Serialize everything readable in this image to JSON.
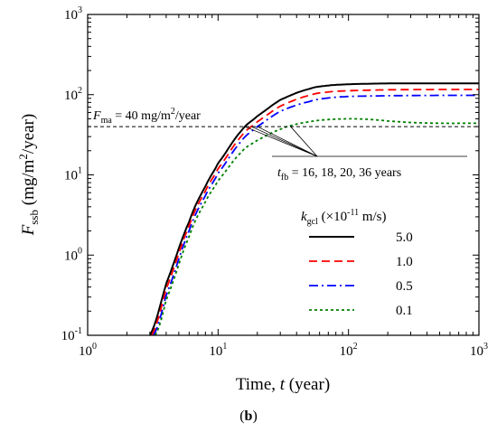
{
  "chart_data": {
    "type": "line",
    "xscale": "log",
    "yscale": "log",
    "xlim": [
      1,
      1000
    ],
    "ylim": [
      0.1,
      1000
    ],
    "xlabel": {
      "prefix": "Time, ",
      "var": "t",
      "suffix": " (year)"
    },
    "ylabel": {
      "var": "F",
      "sub": "ssb",
      "unit_pre": " (mg/m",
      "unit_sup": "2",
      "unit_post": "/year)"
    },
    "x_ticks": [
      {
        "value": 1,
        "base": "10",
        "exp": "0"
      },
      {
        "value": 10,
        "base": "10",
        "exp": "1"
      },
      {
        "value": 100,
        "base": "10",
        "exp": "2"
      },
      {
        "value": 1000,
        "base": "10",
        "exp": "3"
      }
    ],
    "y_ticks": [
      {
        "value": 0.1,
        "base": "10",
        "exp": "-1"
      },
      {
        "value": 1,
        "base": "10",
        "exp": "0"
      },
      {
        "value": 10,
        "base": "10",
        "exp": "1"
      },
      {
        "value": 100,
        "base": "10",
        "exp": "2"
      },
      {
        "value": 1000,
        "base": "10",
        "exp": "3"
      }
    ],
    "reference_line": {
      "y": 40,
      "label_var": "F",
      "label_sub": "ma",
      "label_text": " = 40 mg/m",
      "label_sup": "2",
      "label_post": "/year"
    },
    "annotation": {
      "var": "t",
      "sub": "fb",
      "text": " = 16, 18, 20, 36 years",
      "crossing_times": [
        16,
        18,
        20,
        36
      ]
    },
    "legend": {
      "title_var": "k",
      "title_sub": "gcl",
      "title_pre": " (×10",
      "title_sup": "-11",
      "title_post": " m/s)",
      "placement": "lower-right"
    },
    "series": [
      {
        "name": "5.0",
        "color": "#000000",
        "dash": "solid",
        "x": [
          3,
          4,
          6,
          8,
          10,
          15,
          20,
          30,
          50,
          70,
          100,
          200,
          500,
          1000
        ],
        "y": [
          0.1,
          0.44,
          2.6,
          7.2,
          14,
          35,
          54,
          86,
          118,
          130,
          135,
          138,
          138,
          138
        ]
      },
      {
        "name": "1.0",
        "color": "#ff0000",
        "dash": "dashed",
        "x": [
          3.1,
          4,
          6,
          8,
          10,
          15,
          20,
          30,
          50,
          70,
          100,
          200,
          500,
          1000
        ],
        "y": [
          0.1,
          0.38,
          2.3,
          6.3,
          12,
          30,
          46,
          72,
          98,
          108,
          112,
          115,
          116,
          116
        ]
      },
      {
        "name": "0.5",
        "color": "#0000ff",
        "dash": "dashdot",
        "x": [
          3.2,
          4,
          6,
          8,
          10,
          15,
          20,
          30,
          50,
          70,
          100,
          200,
          500,
          1000
        ],
        "y": [
          0.1,
          0.32,
          2.0,
          5.5,
          10.5,
          26,
          40,
          62,
          82,
          91,
          95,
          97,
          98,
          98
        ]
      },
      {
        "name": "0.1",
        "color": "#008000",
        "dash": "dotted",
        "x": [
          3.3,
          4,
          6,
          8,
          10,
          15,
          20,
          30,
          40,
          60,
          100,
          150,
          200,
          300,
          500,
          1000
        ],
        "y": [
          0.1,
          0.28,
          1.7,
          4.6,
          8.5,
          19,
          27,
          37,
          43,
          48,
          50,
          49,
          47,
          45,
          44,
          44
        ]
      }
    ],
    "grid": false
  },
  "caption": {
    "open": "(",
    "letter": "b",
    "close": ")"
  }
}
